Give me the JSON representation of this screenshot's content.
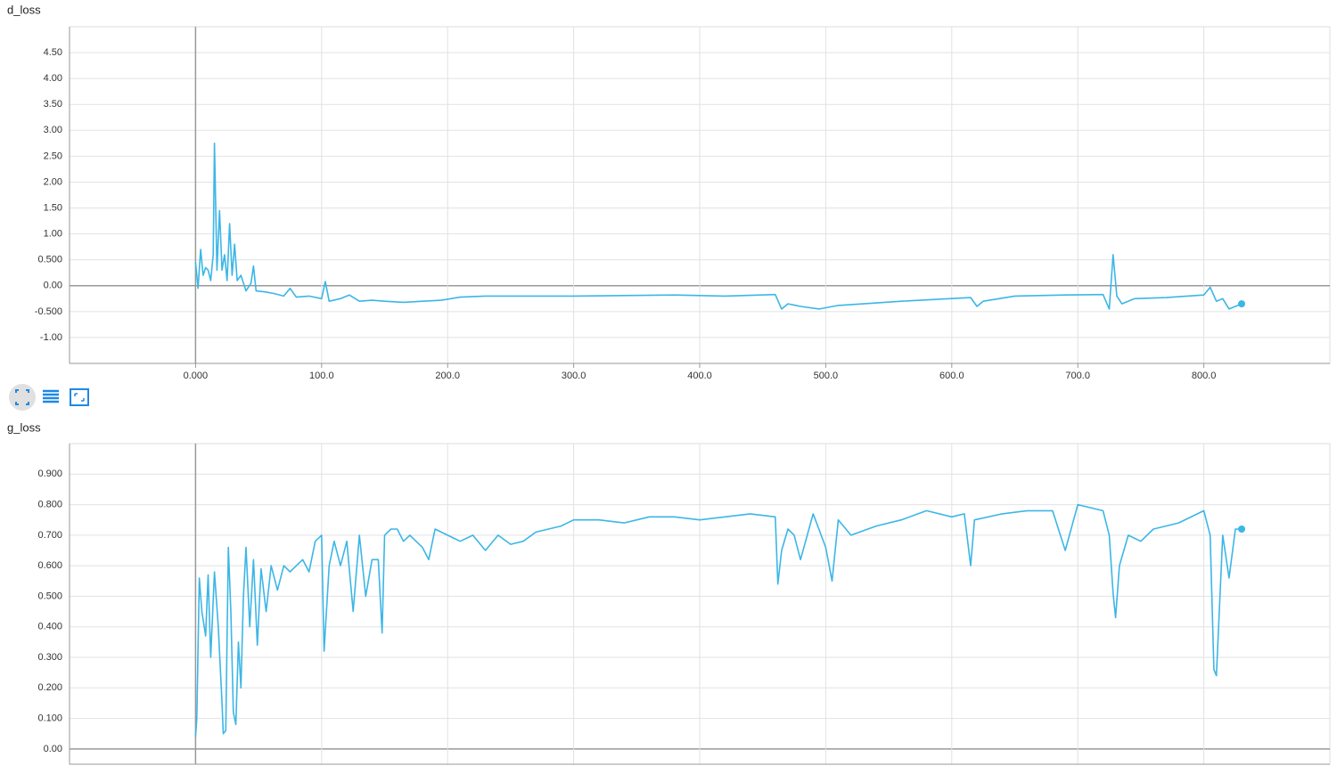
{
  "chart_data": [
    {
      "type": "line",
      "title": "d_loss",
      "color": "#3cb6e6",
      "grid": true,
      "xlim": [
        -100,
        900
      ],
      "xticks": [
        {
          "value": 0,
          "label": "0.000"
        },
        {
          "value": 100,
          "label": "100.0"
        },
        {
          "value": 200,
          "label": "200.0"
        },
        {
          "value": 300,
          "label": "300.0"
        },
        {
          "value": 400,
          "label": "400.0"
        },
        {
          "value": 500,
          "label": "500.0"
        },
        {
          "value": 600,
          "label": "600.0"
        },
        {
          "value": 700,
          "label": "700.0"
        },
        {
          "value": 800,
          "label": "800.0"
        }
      ],
      "ylim": [
        -1.5,
        5.0
      ],
      "yticks": [
        {
          "value": -1,
          "label": "-1.00"
        },
        {
          "value": -0.5,
          "label": "-0.500"
        },
        {
          "value": 0,
          "label": "0.00"
        },
        {
          "value": 0.5,
          "label": "0.500"
        },
        {
          "value": 1,
          "label": "1.00"
        },
        {
          "value": 1.5,
          "label": "1.50"
        },
        {
          "value": 2,
          "label": "2.00"
        },
        {
          "value": 2.5,
          "label": "2.50"
        },
        {
          "value": 3,
          "label": "3.00"
        },
        {
          "value": 3.5,
          "label": "3.50"
        },
        {
          "value": 4,
          "label": "4.00"
        },
        {
          "value": 4.5,
          "label": "4.50"
        }
      ],
      "x": [
        0,
        2,
        4,
        6,
        8,
        10,
        12,
        14,
        15,
        17,
        19,
        21,
        23,
        25,
        27,
        29,
        31,
        33,
        36,
        40,
        44,
        46,
        48,
        55,
        62,
        70,
        75,
        80,
        90,
        100,
        103,
        106,
        115,
        122,
        130,
        140,
        150,
        165,
        180,
        195,
        210,
        230,
        260,
        300,
        340,
        380,
        420,
        460,
        465,
        470,
        480,
        495,
        510,
        530,
        560,
        590,
        615,
        620,
        625,
        650,
        690,
        720,
        725,
        728,
        731,
        735,
        745,
        770,
        800,
        805,
        810,
        815,
        820,
        830
      ],
      "values": [
        0.45,
        -0.05,
        0.7,
        0.2,
        0.35,
        0.3,
        0.1,
        0.6,
        2.75,
        0.3,
        1.45,
        0.3,
        0.6,
        0.1,
        1.2,
        0.2,
        0.8,
        0.1,
        0.2,
        -0.1,
        0.05,
        0.38,
        -0.1,
        -0.12,
        -0.15,
        -0.2,
        -0.05,
        -0.22,
        -0.2,
        -0.25,
        0.08,
        -0.3,
        -0.25,
        -0.18,
        -0.3,
        -0.28,
        -0.3,
        -0.32,
        -0.3,
        -0.28,
        -0.22,
        -0.2,
        -0.2,
        -0.2,
        -0.19,
        -0.18,
        -0.2,
        -0.17,
        -0.45,
        -0.35,
        -0.4,
        -0.45,
        -0.38,
        -0.35,
        -0.3,
        -0.26,
        -0.23,
        -0.4,
        -0.3,
        -0.2,
        -0.18,
        -0.17,
        -0.45,
        0.6,
        -0.2,
        -0.35,
        -0.25,
        -0.23,
        -0.18,
        -0.03,
        -0.3,
        -0.25,
        -0.45,
        -0.35
      ]
    },
    {
      "type": "line",
      "title": "g_loss",
      "color": "#3cb6e6",
      "grid": true,
      "xlim": [
        -100,
        900
      ],
      "xticks": [
        0,
        100,
        200,
        300,
        400,
        500,
        600,
        700,
        800
      ],
      "ylim": [
        -0.05,
        1.0
      ],
      "yticks": [
        {
          "value": 0,
          "label": "0.00"
        },
        {
          "value": 0.1,
          "label": "0.100"
        },
        {
          "value": 0.2,
          "label": "0.200"
        },
        {
          "value": 0.3,
          "label": "0.300"
        },
        {
          "value": 0.4,
          "label": "0.400"
        },
        {
          "value": 0.5,
          "label": "0.500"
        },
        {
          "value": 0.6,
          "label": "0.600"
        },
        {
          "value": 0.7,
          "label": "0.700"
        },
        {
          "value": 0.8,
          "label": "0.800"
        },
        {
          "value": 0.9,
          "label": "0.900"
        }
      ],
      "x": [
        0,
        1,
        3,
        5,
        8,
        10,
        12,
        15,
        18,
        21,
        22,
        24,
        26,
        28,
        30,
        32,
        34,
        36,
        38,
        40,
        43,
        46,
        49,
        52,
        56,
        60,
        65,
        70,
        75,
        80,
        85,
        90,
        95,
        100,
        102,
        106,
        110,
        115,
        120,
        125,
        130,
        135,
        140,
        145,
        148,
        150,
        155,
        160,
        165,
        170,
        180,
        185,
        190,
        200,
        210,
        220,
        230,
        240,
        250,
        260,
        270,
        280,
        290,
        300,
        320,
        340,
        360,
        380,
        400,
        420,
        440,
        460,
        462,
        465,
        470,
        475,
        480,
        490,
        500,
        505,
        510,
        520,
        540,
        560,
        580,
        600,
        610,
        615,
        618,
        640,
        660,
        680,
        690,
        700,
        720,
        725,
        728,
        730,
        733,
        740,
        750,
        760,
        780,
        800,
        805,
        808,
        810,
        815,
        820,
        825,
        830
      ],
      "values": [
        0.04,
        0.1,
        0.56,
        0.45,
        0.37,
        0.57,
        0.3,
        0.58,
        0.4,
        0.15,
        0.05,
        0.06,
        0.66,
        0.45,
        0.12,
        0.08,
        0.35,
        0.2,
        0.5,
        0.66,
        0.4,
        0.62,
        0.34,
        0.59,
        0.45,
        0.6,
        0.52,
        0.6,
        0.58,
        0.6,
        0.62,
        0.58,
        0.68,
        0.7,
        0.32,
        0.6,
        0.68,
        0.6,
        0.68,
        0.45,
        0.7,
        0.5,
        0.62,
        0.62,
        0.38,
        0.7,
        0.72,
        0.72,
        0.68,
        0.7,
        0.66,
        0.62,
        0.72,
        0.7,
        0.68,
        0.7,
        0.65,
        0.7,
        0.67,
        0.68,
        0.71,
        0.72,
        0.73,
        0.75,
        0.75,
        0.74,
        0.76,
        0.76,
        0.75,
        0.76,
        0.77,
        0.76,
        0.54,
        0.65,
        0.72,
        0.7,
        0.62,
        0.77,
        0.66,
        0.55,
        0.75,
        0.7,
        0.73,
        0.75,
        0.78,
        0.76,
        0.77,
        0.6,
        0.75,
        0.77,
        0.78,
        0.78,
        0.65,
        0.8,
        0.78,
        0.7,
        0.51,
        0.43,
        0.6,
        0.7,
        0.68,
        0.72,
        0.74,
        0.78,
        0.7,
        0.26,
        0.24,
        0.7,
        0.56,
        0.72,
        0.72
      ]
    }
  ]
}
